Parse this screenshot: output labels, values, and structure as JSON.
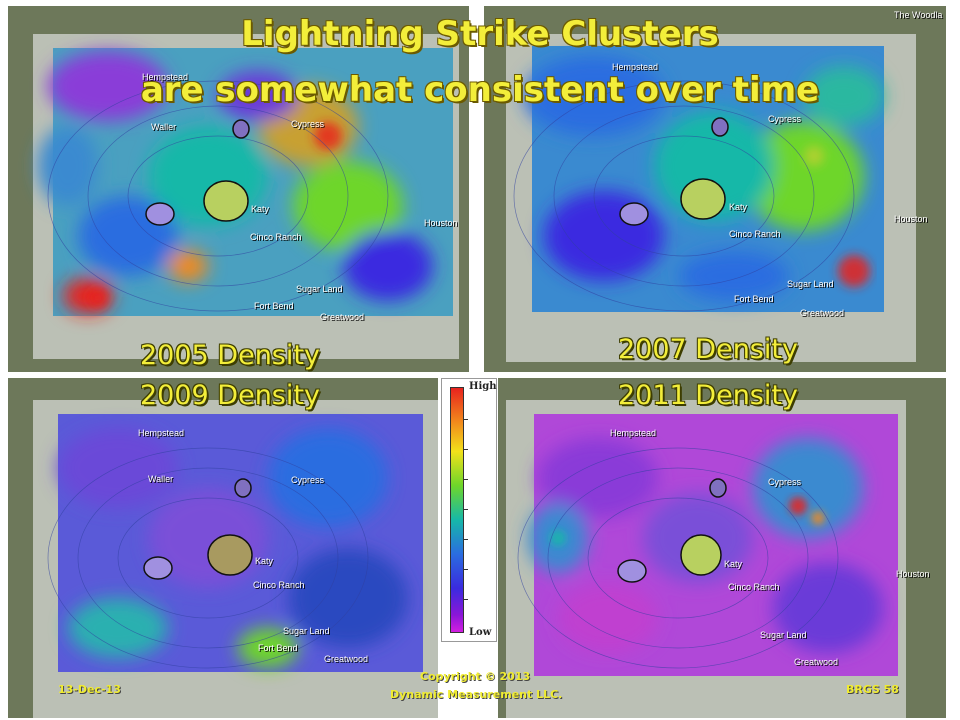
{
  "slide": {
    "title_line1": "Lightning Strike Clusters",
    "title_line2": "are somewhat consistent over time"
  },
  "panels": [
    {
      "label": "2005 Density",
      "color_bias": "green-red"
    },
    {
      "label": "2007 Density",
      "color_bias": "blue-green"
    },
    {
      "label": "2009 Density",
      "color_bias": "blue"
    },
    {
      "label": "2011 Density",
      "color_bias": "magenta"
    }
  ],
  "map_labels": {
    "hempstead": "Hempstead",
    "waller": "Waller",
    "cypress": "Cypress",
    "katy": "Katy",
    "houston": "Houston",
    "cinco_ranch": "Cinco Ranch",
    "sugar_land": "Sugar Land",
    "fort_bend": "Fort Bend",
    "greatwood": "Greatwood",
    "woodlands": "The Woodla"
  },
  "legend": {
    "high": "High",
    "low": "Low",
    "colors": [
      "#e8231e",
      "#f2e11a",
      "#6ed62a",
      "#16b8a8",
      "#2a6de0",
      "#8a16d8",
      "#d21ee0"
    ]
  },
  "footer": {
    "date": "13-Dec-13",
    "copyright_line1": "Copyright © 2013",
    "copyright_line2": "Dynamic Measurement LLC.",
    "slide_ref": "BRGS  58"
  }
}
